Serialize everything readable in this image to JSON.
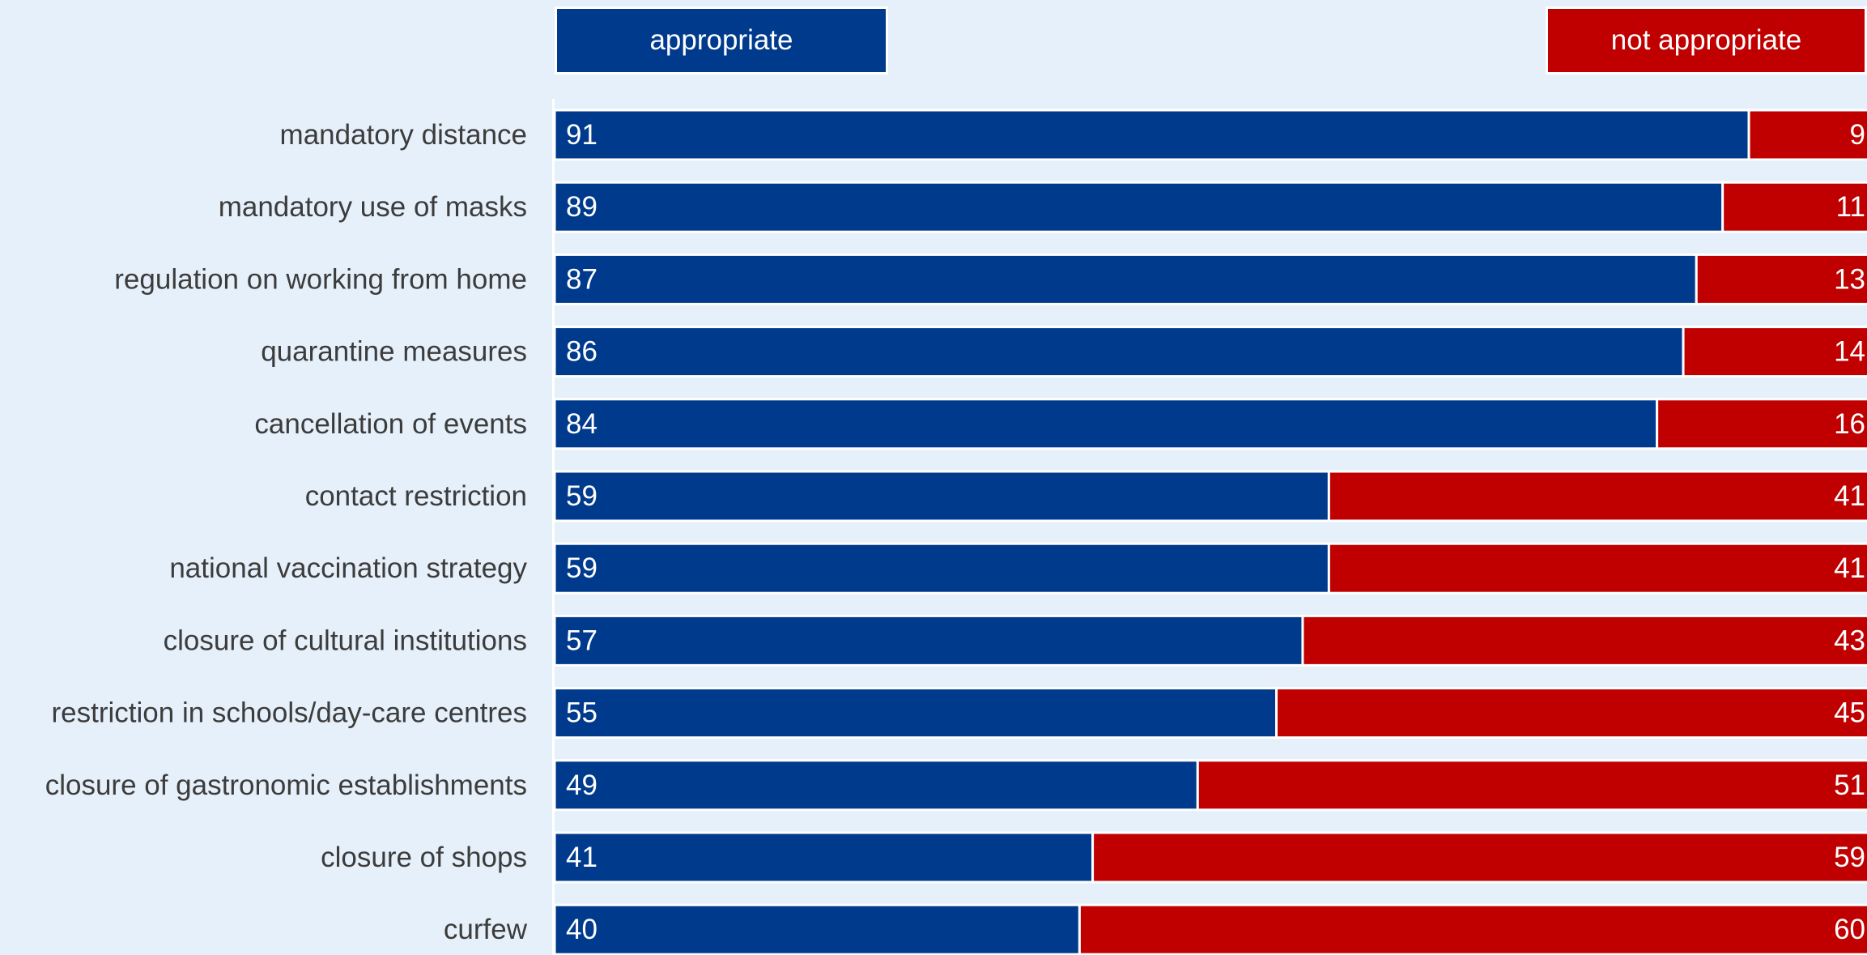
{
  "colors": {
    "background": "#e6f0fa",
    "appropriate": "#003a8c",
    "not_appropriate": "#c00000",
    "label_text": "#3c3c3c",
    "value_text": "#ffffff"
  },
  "legend": {
    "appropriate": "appropriate",
    "not_appropriate": "not appropriate"
  },
  "chart_data": {
    "type": "bar",
    "orientation": "horizontal",
    "stacked": true,
    "xlim": [
      0,
      100
    ],
    "grid": false,
    "legend_position": "top",
    "categories": [
      "mandatory distance",
      "mandatory use of masks",
      "regulation on working from home",
      "quarantine measures",
      "cancellation of events",
      "contact restriction",
      "national vaccination strategy",
      "closure of cultural institutions",
      "restriction in schools/day-care centres",
      "closure of gastronomic establishments",
      "closure of shops",
      "curfew"
    ],
    "series": [
      {
        "name": "appropriate",
        "values": [
          91,
          89,
          87,
          86,
          84,
          59,
          59,
          57,
          55,
          49,
          41,
          40
        ]
      },
      {
        "name": "not appropriate",
        "values": [
          9,
          11,
          13,
          14,
          16,
          41,
          41,
          43,
          45,
          51,
          59,
          60
        ]
      }
    ]
  }
}
